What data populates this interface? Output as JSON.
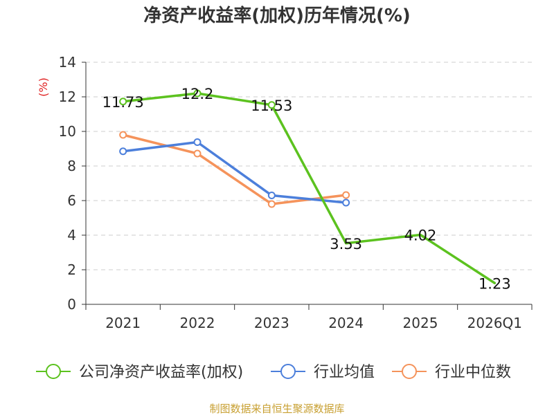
{
  "chart_data": {
    "type": "line",
    "title": "净资产收益率(加权)历年情况(%)",
    "ylabel": "(%)",
    "xlabel": "",
    "categories": [
      "2021",
      "2022",
      "2023",
      "2024",
      "2025",
      "2026Q1"
    ],
    "ylim": [
      0,
      14
    ],
    "yticks": [
      0,
      2,
      4,
      6,
      8,
      10,
      12,
      14
    ],
    "grid": true,
    "legend_position": "bottom",
    "series": [
      {
        "name": "公司净资产收益率(加权)",
        "color": "#5cc21f",
        "values": [
          11.73,
          12.2,
          11.53,
          3.53,
          4.02,
          1.23
        ],
        "labels": [
          "11.73",
          "12.2",
          "11.53",
          "3.53",
          "4.02",
          "1.23"
        ],
        "markers": [
          true,
          true,
          true,
          false,
          false,
          false
        ]
      },
      {
        "name": "行业均值",
        "color": "#4c7fdb",
        "values": [
          8.85,
          9.38,
          6.3,
          5.88,
          null,
          null
        ],
        "markers": [
          true,
          true,
          true,
          true,
          false,
          false
        ]
      },
      {
        "name": "行业中位数",
        "color": "#f5935b",
        "values": [
          9.8,
          8.72,
          5.8,
          6.32,
          null,
          null
        ],
        "markers": [
          true,
          true,
          true,
          true,
          false,
          false
        ]
      }
    ],
    "source": "制图数据来自恒生聚源数据库"
  }
}
